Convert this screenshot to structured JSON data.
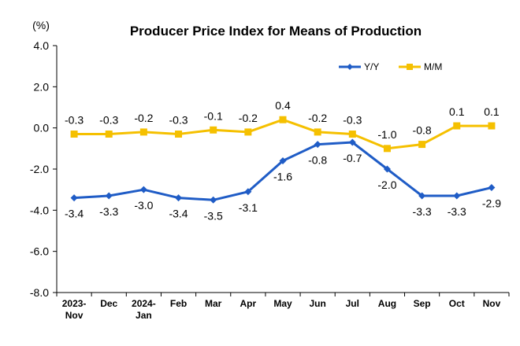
{
  "chart_data": {
    "type": "line",
    "title": "Producer Price Index for Means of Production",
    "unit": "(%)",
    "categories": [
      [
        "2023-",
        "Nov"
      ],
      [
        "Dec"
      ],
      [
        "2024-",
        "Jan"
      ],
      [
        "Feb"
      ],
      [
        "Mar"
      ],
      [
        "Apr"
      ],
      [
        "May"
      ],
      [
        "Jun"
      ],
      [
        "Jul"
      ],
      [
        "Aug"
      ],
      [
        "Sep"
      ],
      [
        "Oct"
      ],
      [
        "Nov"
      ]
    ],
    "ylim": [
      -8.0,
      4.0
    ],
    "yticks": [
      "4.0",
      "2.0",
      "0.0",
      "-2.0",
      "-4.0",
      "-6.0",
      "-8.0"
    ],
    "ytick_values": [
      4,
      2,
      0,
      -2,
      -4,
      -6,
      -8
    ],
    "grid": false,
    "legend_position": "top-right",
    "series": [
      {
        "name": "Y/Y",
        "color": "#1f5cc6",
        "marker": "diamond",
        "label_position": "below",
        "values": [
          -3.4,
          -3.3,
          -3.0,
          -3.4,
          -3.5,
          -3.1,
          -1.6,
          -0.8,
          -0.7,
          -2.0,
          -3.3,
          -3.3,
          -2.9
        ],
        "labels": [
          "-3.4",
          "-3.3",
          "-3.0",
          "-3.4",
          "-3.5",
          "-3.1",
          "-1.6",
          "-0.8",
          "-0.7",
          "-2.0",
          "-3.3",
          "-3.3",
          "-2.9"
        ]
      },
      {
        "name": "M/M",
        "color": "#f5c000",
        "marker": "square",
        "label_position": "above",
        "values": [
          -0.3,
          -0.3,
          -0.2,
          -0.3,
          -0.1,
          -0.2,
          0.4,
          -0.2,
          -0.3,
          -1.0,
          -0.8,
          0.1,
          0.1
        ],
        "labels": [
          "-0.3",
          "-0.3",
          "-0.2",
          "-0.3",
          "-0.1",
          "-0.2",
          "0.4",
          "-0.2",
          "-0.3",
          "-1.0",
          "-0.8",
          "0.1",
          "0.1"
        ]
      }
    ]
  }
}
